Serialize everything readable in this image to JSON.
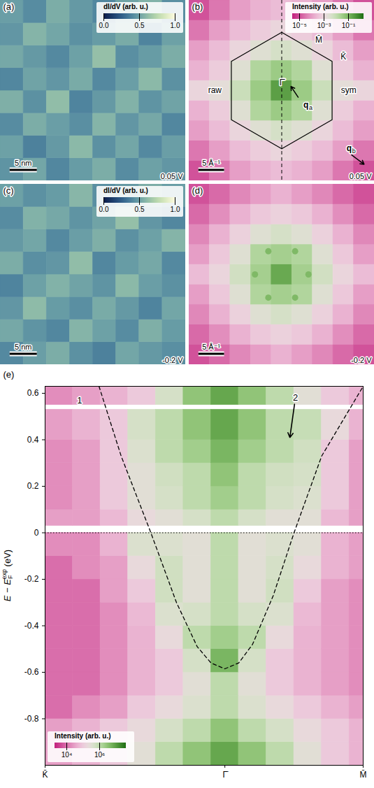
{
  "chart_data": [
    {
      "panel": "(a)",
      "type": "heatmap",
      "tick_labels": false,
      "xlim": [
        0,
        34
      ],
      "ylim": [
        0,
        33
      ],
      "color": [
        "#0c1c4a",
        "#2b5d8e",
        "#6aa3ad",
        "#bcdba2",
        "#fcfae0"
      ],
      "color_scale": {
        "range": [
          0,
          1
        ],
        "log": false
      },
      "colorbar": {
        "label": "dI/dV (arb. u.)",
        "ticks": [
          {
            "value": 0,
            "label": "0.0"
          },
          0.5,
          {
            "value": 1,
            "label": "1.0"
          }
        ]
      },
      "cells": [
        [
          0.45,
          0.52,
          0.4,
          0.48,
          0.55,
          0.42,
          0.5,
          0.46
        ],
        [
          0.5,
          0.38,
          0.47,
          0.6,
          0.44,
          0.52,
          0.41,
          0.49
        ],
        [
          0.42,
          0.55,
          0.49,
          0.43,
          0.58,
          0.46,
          0.53,
          0.4
        ],
        [
          0.56,
          0.44,
          0.62,
          0.39,
          0.47,
          0.57,
          0.45,
          0.51
        ],
        [
          0.4,
          0.51,
          0.46,
          0.54,
          0.41,
          0.49,
          0.6,
          0.44
        ],
        [
          0.53,
          0.47,
          0.41,
          0.5,
          0.63,
          0.43,
          0.48,
          0.55
        ],
        [
          0.46,
          0.58,
          0.52,
          0.44,
          0.48,
          0.54,
          0.39,
          0.5
        ],
        [
          0.49,
          0.42,
          0.55,
          0.47,
          0.4,
          0.51,
          0.57,
          0.43
        ]
      ],
      "scale_bar": {
        "length": 5,
        "label": "5 nm"
      },
      "bias": "0.05 V"
    },
    {
      "panel": "(b)",
      "type": "heatmap",
      "tick_labels": false,
      "xlim": [
        -18,
        18
      ],
      "ylim": [
        -17.5,
        17.5
      ],
      "color": [
        "#c2217e",
        "#e79ac4",
        "#f7f4f6",
        "#8cc96a",
        "#1f6e14"
      ],
      "color_scale": {
        "range": [
          2.5e-06,
          2
        ],
        "log": true
      },
      "colorbar": {
        "label": "Intensity (arb. u.)",
        "ticks": [
          {
            "value": 1e-05,
            "label": "10⁻⁵"
          },
          {
            "value": 0.001,
            "label": "10⁻³"
          },
          {
            "value": 0.1,
            "label": "10⁻¹"
          }
        ]
      },
      "cells": [
        [
          1e-05,
          3e-05,
          0.0001,
          0.0002,
          0.0003,
          0.0002,
          0.0001,
          3e-05,
          1e-05
        ],
        [
          3e-05,
          0.0001,
          0.0003,
          0.0006,
          0.001,
          0.0006,
          0.0003,
          0.0001,
          3e-05
        ],
        [
          0.0001,
          0.0003,
          0.001,
          0.003,
          0.005,
          0.003,
          0.001,
          0.0003,
          0.0001
        ],
        [
          0.0002,
          0.0006,
          0.003,
          0.02,
          0.04,
          0.02,
          0.003,
          0.0006,
          0.0002
        ],
        [
          0.001,
          0.002,
          0.008,
          0.04,
          0.3,
          0.04,
          0.008,
          0.002,
          0.001
        ],
        [
          0.0002,
          0.0006,
          0.003,
          0.02,
          0.04,
          0.02,
          0.003,
          0.0006,
          0.0002
        ],
        [
          0.0001,
          0.0003,
          0.001,
          0.003,
          0.005,
          0.003,
          0.001,
          0.0003,
          0.0001
        ],
        [
          3e-05,
          0.0001,
          0.0003,
          0.0006,
          0.001,
          0.0006,
          0.0003,
          0.0001,
          3e-05
        ],
        [
          1e-05,
          3e-05,
          0.0001,
          0.0002,
          0.0003,
          0.0002,
          0.0001,
          3e-05,
          1e-05
        ]
      ],
      "brillouin_zone": [
        [
          0,
          11.3
        ],
        [
          9.79,
          5.65
        ],
        [
          9.79,
          -5.65
        ],
        [
          0,
          -11.3
        ],
        [
          -9.79,
          -5.65
        ],
        [
          -9.79,
          5.65
        ],
        [
          0,
          11.3
        ]
      ],
      "mirror_line": {
        "x": 0,
        "line_style": "dashed"
      },
      "annotations": [
        {
          "text": "raw",
          "x": -13,
          "y": 0
        },
        {
          "text": "sym",
          "x": 13,
          "y": 0
        },
        {
          "text": "Γ̄",
          "x": 0,
          "y": 1.6
        },
        {
          "text": "M̄",
          "x": 7.2,
          "y": 9.8
        },
        {
          "text": "K̄",
          "x": 12,
          "y": 6.6
        }
      ],
      "vectors": [
        {
          "text": "q",
          "subscript": "a",
          "label_at": [
            4.2,
            -2.8
          ],
          "from": [
            3.2,
            -1.3
          ],
          "to": [
            1.8,
            0.8
          ]
        },
        {
          "text": "q",
          "subscript": "b",
          "label_at": [
            12.6,
            -11.2
          ],
          "from": [
            13.6,
            -12.5
          ],
          "to": [
            16.0,
            -14.3
          ]
        }
      ],
      "scale_bar": {
        "length": 5,
        "label": "5 Å⁻¹"
      },
      "bias": "0.05 V"
    },
    {
      "panel": "(c)",
      "type": "heatmap",
      "tick_labels": false,
      "xlim": [
        0,
        34
      ],
      "ylim": [
        0,
        33
      ],
      "color": [
        "#0c1c4a",
        "#2b5d8e",
        "#6aa3ad",
        "#bcdba2",
        "#fcfae0"
      ],
      "color_scale": {
        "range": [
          0,
          1
        ],
        "log": false
      },
      "colorbar": {
        "label": "dI/dV (arb. u.)",
        "ticks": [
          {
            "value": 0,
            "label": "0.0"
          },
          0.5,
          {
            "value": 1,
            "label": "1.0"
          }
        ]
      },
      "cells": [
        [
          0.41,
          0.49,
          0.55,
          0.44,
          0.38,
          0.52,
          0.47,
          0.43
        ],
        [
          0.53,
          0.45,
          0.4,
          0.58,
          0.5,
          0.42,
          0.56,
          0.48
        ],
        [
          0.46,
          0.61,
          0.48,
          0.43,
          0.54,
          0.47,
          0.39,
          0.52
        ],
        [
          0.39,
          0.5,
          0.57,
          0.51,
          0.45,
          0.6,
          0.49,
          0.44
        ],
        [
          0.55,
          0.43,
          0.46,
          0.62,
          0.4,
          0.48,
          0.53,
          0.41
        ],
        [
          0.47,
          0.52,
          0.41,
          0.49,
          0.56,
          0.44,
          0.5,
          0.58
        ],
        [
          0.42,
          0.57,
          0.53,
          0.45,
          0.51,
          0.63,
          0.46,
          0.4
        ],
        [
          0.5,
          0.44,
          0.48,
          0.59,
          0.43,
          0.47,
          0.55,
          0.49
        ]
      ],
      "scale_bar": {
        "length": 5,
        "label": "5 nm"
      },
      "bias": "-0.2 V"
    },
    {
      "panel": "(d)",
      "type": "heatmap",
      "tick_labels": false,
      "xlim": [
        -18,
        18
      ],
      "ylim": [
        -17.5,
        17.5
      ],
      "color": [
        "#c2217e",
        "#e79ac4",
        "#f7f4f6",
        "#8cc96a",
        "#1f6e14"
      ],
      "color_scale": {
        "range": [
          2.5e-06,
          2
        ],
        "log": true
      },
      "cells": [
        [
          1e-05,
          2e-05,
          5e-05,
          0.0001,
          0.0002,
          0.0001,
          5e-05,
          2e-05,
          1e-05
        ],
        [
          2e-05,
          6e-05,
          0.0002,
          0.0005,
          0.0008,
          0.0005,
          0.0002,
          6e-05,
          2e-05
        ],
        [
          5e-05,
          0.0002,
          0.0008,
          0.003,
          0.005,
          0.003,
          0.0008,
          0.0002,
          5e-05
        ],
        [
          0.0001,
          0.0005,
          0.003,
          0.02,
          0.03,
          0.02,
          0.003,
          0.0005,
          0.0001
        ],
        [
          0.0003,
          0.001,
          0.006,
          0.03,
          0.2,
          0.03,
          0.006,
          0.001,
          0.0003
        ],
        [
          0.0001,
          0.0005,
          0.003,
          0.02,
          0.03,
          0.02,
          0.003,
          0.0005,
          0.0001
        ],
        [
          5e-05,
          0.0002,
          0.0008,
          0.003,
          0.005,
          0.003,
          0.0008,
          0.0002,
          5e-05
        ],
        [
          2e-05,
          6e-05,
          0.0002,
          0.0005,
          0.0008,
          0.0005,
          0.0002,
          6e-05,
          2e-05
        ],
        [
          1e-05,
          2e-05,
          5e-05,
          0.0001,
          0.0002,
          0.0001,
          5e-05,
          2e-05,
          1e-05
        ]
      ],
      "peaks": [
        {
          "x": 5.2,
          "y": 0,
          "intensity": 0.1
        },
        {
          "x": 2.6,
          "y": 4.5,
          "intensity": 0.1
        },
        {
          "x": -2.6,
          "y": 4.5,
          "intensity": 0.1
        },
        {
          "x": -5.2,
          "y": 0,
          "intensity": 0.1
        },
        {
          "x": -2.6,
          "y": -4.5,
          "intensity": 0.1
        },
        {
          "x": 2.6,
          "y": -4.5,
          "intensity": 0.1
        }
      ],
      "scale_bar": {
        "length": 5,
        "label": "5 Å⁻¹"
      },
      "bias": "-0.2 V"
    },
    {
      "panel": "(e)",
      "type": "heatmap",
      "xlim": [
        -1.3,
        1.0
      ],
      "ylim": [
        -1.0,
        0.63
      ],
      "xticks": [
        {
          "value": -1.3,
          "label": "K̄"
        },
        {
          "value": 0,
          "label": "Γ̄"
        },
        {
          "value": 1.0,
          "label": "M̄"
        }
      ],
      "yticks": [
        -0.8,
        -0.6,
        -0.4,
        -0.2,
        0,
        0.2,
        0.4,
        0.6
      ],
      "ylabel": {
        "text": "E − E",
        "subscript": "F",
        "superscript": "exp",
        "unit": " (eV)"
      },
      "color": [
        "#c2217e",
        "#e79ac4",
        "#f7f4f6",
        "#8cc96a",
        "#1f6e14"
      ],
      "color_scale": {
        "range": [
          2000.0,
          40000000.0
        ],
        "log": true
      },
      "colorbar": {
        "label": "Intensity (arb. u.)",
        "ticks": [
          {
            "value": 10000.0,
            "label": "10⁴"
          },
          {
            "value": 1000000.0,
            "label": "10⁶"
          }
        ]
      },
      "x_edges": [
        -1.3,
        -1.1,
        -0.9,
        -0.7,
        -0.5,
        -0.3,
        -0.1,
        0.1,
        0.3,
        0.5,
        0.7,
        0.9,
        1.0
      ],
      "y_edges": [
        -1.0,
        -0.9,
        -0.8,
        -0.7,
        -0.6,
        -0.5,
        -0.4,
        -0.3,
        -0.2,
        -0.1,
        0.0,
        0.03,
        0.1,
        0.2,
        0.3,
        0.4,
        0.53,
        0.55,
        0.63
      ],
      "cells": [
        [
          30000.0,
          50000.0,
          100000.0,
          300000.0,
          1000000.0,
          3000000.0,
          8000000.0,
          3000000.0,
          1000000.0,
          300000.0,
          100000.0,
          50000.0
        ],
        [
          30000.0,
          50000.0,
          100000.0,
          200000.0,
          500000.0,
          1000000.0,
          3000000.0,
          1000000.0,
          500000.0,
          200000.0,
          100000.0,
          50000.0
        ],
        [
          10000.0,
          20000.0,
          30000.0,
          100000.0,
          200000.0,
          400000.0,
          1000000.0,
          400000.0,
          200000.0,
          100000.0,
          50000.0,
          30000.0
        ],
        [
          10000.0,
          10000.0,
          20000.0,
          50000.0,
          100000.0,
          300000.0,
          1000000.0,
          300000.0,
          100000.0,
          50000.0,
          30000.0,
          20000.0
        ],
        [
          10000.0,
          10000.0,
          20000.0,
          50000.0,
          100000.0,
          500000.0,
          5000000.0,
          500000.0,
          100000.0,
          50000.0,
          30000.0,
          20000.0
        ],
        [
          10000.0,
          10000.0,
          20000.0,
          50000.0,
          200000.0,
          1000000.0,
          2000000.0,
          1000000.0,
          200000.0,
          50000.0,
          30000.0,
          20000.0
        ],
        [
          10000.0,
          10000.0,
          20000.0,
          60000.0,
          400000.0,
          500000.0,
          1000000.0,
          500000.0,
          400000.0,
          60000.0,
          30000.0,
          20000.0
        ],
        [
          10000.0,
          10000.0,
          30000.0,
          100000.0,
          600000.0,
          300000.0,
          1000000.0,
          300000.0,
          600000.0,
          100000.0,
          30000.0,
          20000.0
        ],
        [
          10000.0,
          20000.0,
          30000.0,
          200000.0,
          600000.0,
          300000.0,
          1000000.0,
          300000.0,
          500000.0,
          200000.0,
          50000.0,
          30000.0
        ],
        [
          20000.0,
          20000.0,
          50000.0,
          400000.0,
          400000.0,
          300000.0,
          1000000.0,
          300000.0,
          400000.0,
          300000.0,
          50000.0,
          30000.0
        ],
        [
          null,
          null,
          null,
          null,
          null,
          null,
          null,
          null,
          null,
          null,
          null,
          null
        ],
        [
          30000.0,
          30000.0,
          60000.0,
          200000.0,
          300000.0,
          500000.0,
          1000000.0,
          500000.0,
          300000.0,
          300000.0,
          60000.0,
          30000.0
        ],
        [
          20000.0,
          30000.0,
          100000.0,
          300000.0,
          500000.0,
          1000000.0,
          2000000.0,
          1000000.0,
          500000.0,
          400000.0,
          100000.0,
          30000.0
        ],
        [
          20000.0,
          30000.0,
          100000.0,
          300000.0,
          600000.0,
          1000000.0,
          3000000.0,
          1000000.0,
          600000.0,
          500000.0,
          100000.0,
          30000.0
        ],
        [
          20000.0,
          30000.0,
          100000.0,
          400000.0,
          1000000.0,
          2000000.0,
          5000000.0,
          2000000.0,
          1000000.0,
          600000.0,
          100000.0,
          30000.0
        ],
        [
          30000.0,
          50000.0,
          100000.0,
          500000.0,
          1000000.0,
          3000000.0,
          8000000.0,
          3000000.0,
          1000000.0,
          800000.0,
          200000.0,
          50000.0
        ],
        [
          null,
          null,
          null,
          null,
          null,
          null,
          null,
          null,
          null,
          null,
          null,
          null
        ],
        [
          20000.0,
          30000.0,
          50000.0,
          100000.0,
          500000.0,
          3000000.0,
          8000000.0,
          3000000.0,
          1000000.0,
          300000.0,
          100000.0,
          50000.0
        ]
      ],
      "band": {
        "line_style": "dashed",
        "x": [
          -0.91,
          -0.75,
          -0.535,
          -0.35,
          -0.2,
          -0.1,
          0,
          0.1,
          0.2,
          0.35,
          0.5,
          0.7,
          1.0
        ],
        "y": [
          0.63,
          0.33,
          0.0,
          -0.3,
          -0.49,
          -0.56,
          -0.585,
          -0.56,
          -0.48,
          -0.27,
          0.0,
          0.33,
          0.63
        ]
      },
      "fermi_level": {
        "value": 0,
        "line_style": "dotted"
      },
      "labels": [
        {
          "text": "1",
          "x": -1.05,
          "y": 0.57
        },
        {
          "text": "2",
          "x": 0.51,
          "y": 0.58,
          "arrow_to": [
            0.47,
            0.41
          ]
        }
      ]
    }
  ]
}
